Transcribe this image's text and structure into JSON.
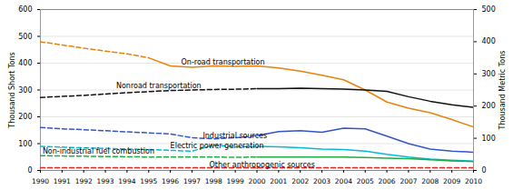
{
  "chart_data": {
    "type": "line",
    "x": [
      1990,
      1991,
      1992,
      1993,
      1994,
      1995,
      1996,
      1997,
      1998,
      1999,
      2000,
      2001,
      2002,
      2003,
      2004,
      2005,
      2006,
      2007,
      2008,
      2009,
      2010
    ],
    "series": [
      {
        "color": "#E8820A",
        "line_style": "dashed",
        "solid_from": 1995,
        "values": [
          480,
          468,
          456,
          445,
          435,
          420,
          390,
          385,
          390,
          388,
          390,
          382,
          370,
          355,
          338,
          300,
          255,
          232,
          215,
          190,
          162
        ]
      },
      {
        "color": "#111111",
        "line_style": "dashed",
        "solid_from": 2000,
        "values": [
          272,
          276,
          280,
          285,
          290,
          294,
          298,
          300,
          302,
          303,
          305,
          305,
          307,
          305,
          303,
          300,
          295,
          275,
          258,
          245,
          235
        ]
      },
      {
        "color": "#3355CC",
        "line_style": "dashed",
        "solid_from": 2000,
        "values": [
          160,
          155,
          152,
          148,
          144,
          140,
          136,
          122,
          118,
          122,
          130,
          145,
          148,
          142,
          158,
          155,
          128,
          100,
          80,
          72,
          68
        ]
      },
      {
        "color": "#00BBDD",
        "line_style": "dashed",
        "solid_from": 2000,
        "values": [
          90,
          87,
          84,
          82,
          80,
          78,
          75,
          72,
          95,
          88,
          90,
          88,
          85,
          80,
          78,
          72,
          60,
          50,
          42,
          38,
          35
        ]
      },
      {
        "color": "#22AA44",
        "line_style": "dashed",
        "solid_from": 2000,
        "values": [
          55,
          54,
          53,
          52,
          51,
          50,
          50,
          50,
          50,
          49,
          50,
          50,
          50,
          50,
          50,
          48,
          46,
          44,
          40,
          36,
          33
        ]
      },
      {
        "color": "#DD2222",
        "line_style": "dashed",
        "values": [
          10,
          10,
          10,
          10,
          10,
          10,
          10,
          10,
          10,
          10,
          10,
          10,
          10,
          10,
          10,
          10,
          10,
          10,
          10,
          10,
          10
        ]
      }
    ],
    "xlim": [
      1990,
      2010
    ],
    "xticks": [
      1990,
      1991,
      1992,
      1993,
      1994,
      1995,
      1996,
      1997,
      1998,
      1999,
      2000,
      2001,
      2002,
      2003,
      2004,
      2005,
      2006,
      2007,
      2008,
      2009,
      2010
    ],
    "ylim": [
      0,
      600
    ],
    "yticks": [
      0,
      100,
      200,
      300,
      400,
      500,
      600
    ],
    "ylabel": "Thousand Short Tons",
    "y2lim": [
      0,
      500
    ],
    "y2ticks": [
      0,
      100,
      200,
      300,
      400,
      500
    ],
    "y2label": "Thousand Metric Tons",
    "grid": true,
    "annotations": [
      {
        "text": "On-road transportation",
        "x": 1996.5,
        "y": 395
      },
      {
        "text": "Nonroad transportation",
        "x": 1993.5,
        "y": 308
      },
      {
        "text": "Industrial sources",
        "x": 1997.5,
        "y": 120
      },
      {
        "text": "Electric power generation",
        "x": 1996.0,
        "y": 82
      },
      {
        "text": "Non-industrial fuel combustion",
        "x": 1990.1,
        "y": 63
      },
      {
        "text": "Other anthropogenic sources",
        "x": 1997.8,
        "y": 12
      }
    ]
  }
}
